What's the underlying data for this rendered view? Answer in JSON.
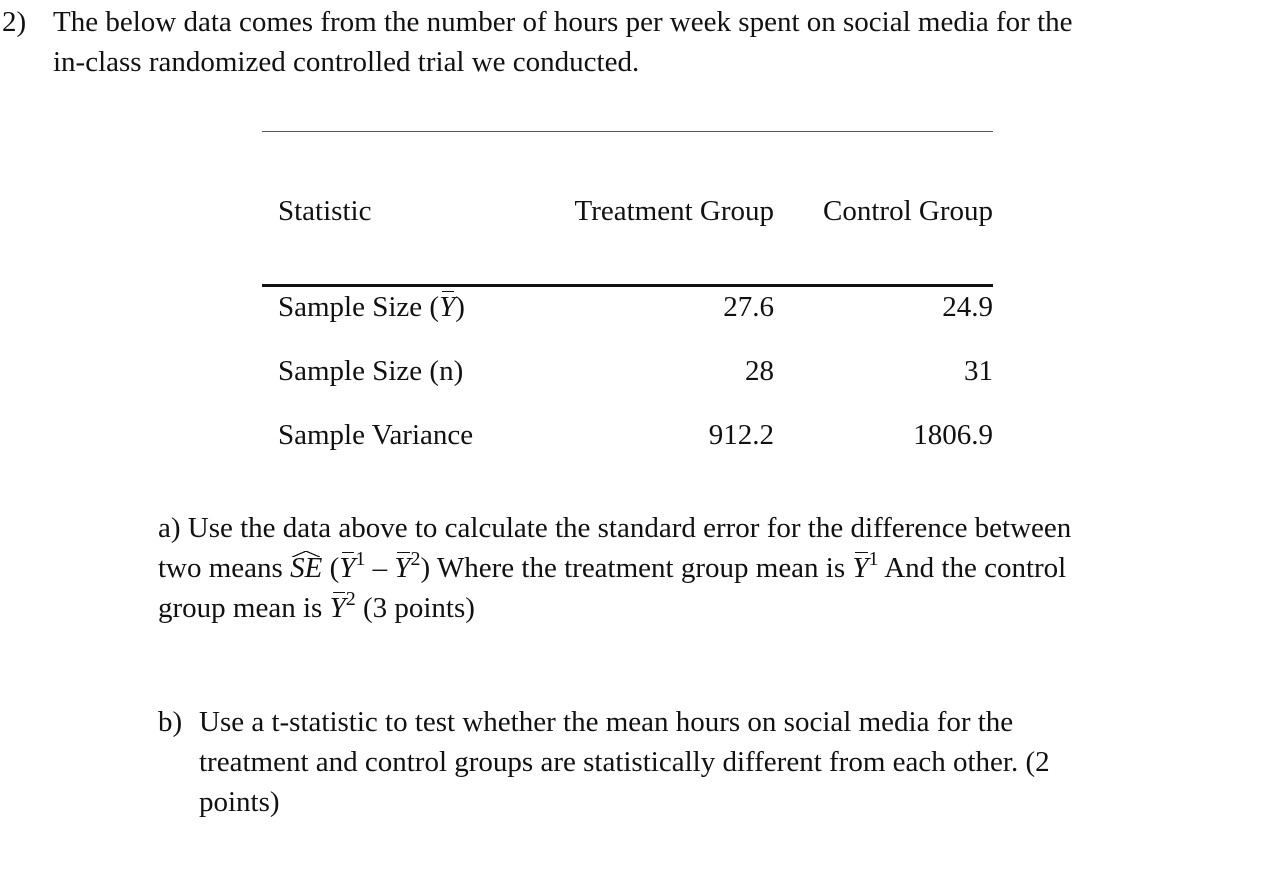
{
  "question": {
    "number": "2)",
    "line1": "The below data comes from the number of hours per week spent on social media for the",
    "line2": "in-class randomized controlled trial we conducted."
  },
  "table": {
    "headers": {
      "statistic": "Statistic",
      "treatment": "Treatment Group",
      "control": "Control Group"
    },
    "rows": [
      {
        "label_pre": "Sample Size (",
        "label_sym": "Y",
        "label_post": ")",
        "treatment": "27.6",
        "control": "24.9"
      },
      {
        "label": "Sample Size (n)",
        "treatment": "28",
        "control": "31"
      },
      {
        "label": "Sample Variance",
        "treatment": "912.2",
        "control": "1806.9"
      }
    ]
  },
  "part_a": {
    "line1": "a) Use the data above to calculate the standard error for the difference between",
    "line2_pre": "two means ",
    "se": "SE",
    "open": " (",
    "y": "Y",
    "sup1": "1",
    "minus": " – ",
    "sup2": "2",
    "close": ") Where the treatment group mean is ",
    "line2_post": " And the control",
    "line3_pre": "group mean is ",
    "line3_post": " (3 points)"
  },
  "part_b": {
    "label": "b)",
    "line1": "Use a t-statistic to test whether the mean hours on social media for the",
    "line2": "treatment and control groups are statistically different from each other. (2",
    "line3": "points)"
  }
}
